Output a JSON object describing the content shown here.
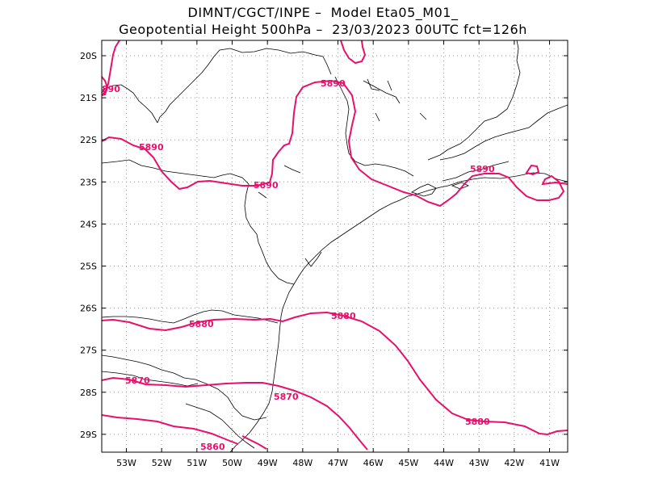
{
  "title": {
    "line1": "DIMNT/CGCT/INPE –  Model Eta05_M01_",
    "line2": "Geopotential Height 500hPa –  23/03/2023 00UTC fct=126h"
  },
  "map": {
    "lon_labels": [
      "53W",
      "52W",
      "51W",
      "50W",
      "49W",
      "48W",
      "47W",
      "46W",
      "45W",
      "44W",
      "43W",
      "42W",
      "41W"
    ],
    "lat_labels": [
      "20S",
      "21S",
      "22S",
      "23S",
      "24S",
      "25S",
      "26S",
      "27S",
      "28S",
      "29S"
    ],
    "contour_color": "#e8106b",
    "coast_color": "#000000"
  },
  "contour_labels": [
    {
      "id": "c1",
      "text": "5890"
    },
    {
      "id": "c2",
      "text": "5890"
    },
    {
      "id": "c3",
      "text": "5890"
    },
    {
      "id": "c4",
      "text": "5890"
    },
    {
      "id": "c5",
      "text": "890"
    },
    {
      "id": "c6",
      "text": "5880"
    },
    {
      "id": "c7",
      "text": "5880"
    },
    {
      "id": "c8",
      "text": "5880"
    },
    {
      "id": "c9",
      "text": "5870"
    },
    {
      "id": "c10",
      "text": "5870"
    },
    {
      "id": "c11",
      "text": "5860"
    }
  ]
}
